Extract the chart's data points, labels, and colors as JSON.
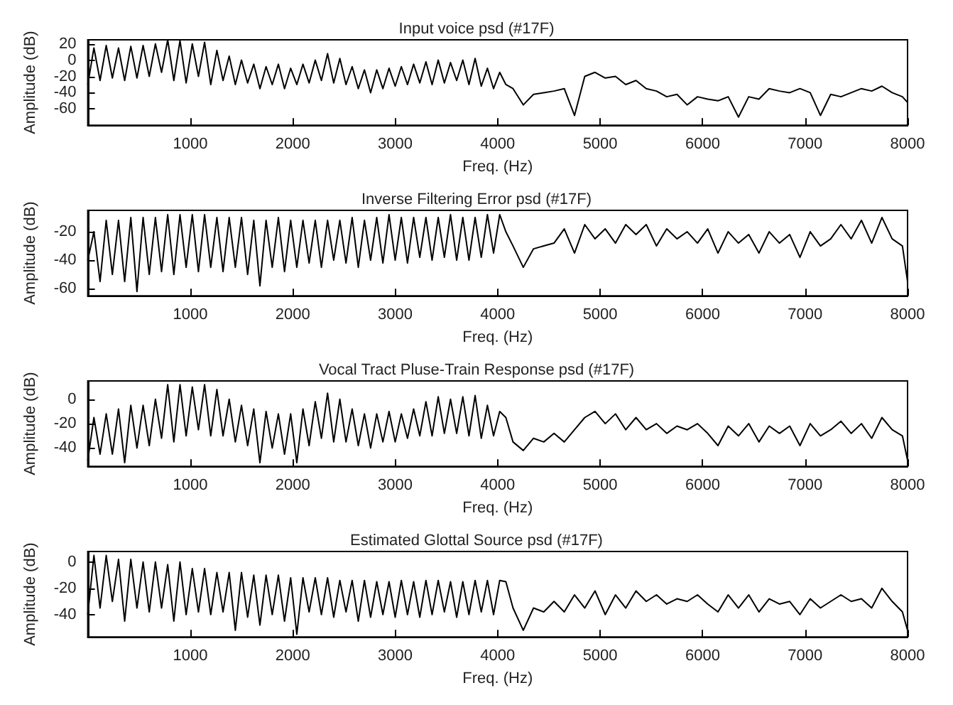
{
  "chart_data": [
    {
      "type": "line",
      "title": "Input voice psd (#17F)",
      "xlabel": "Freq. (Hz)",
      "ylabel": "Amplitude (dB)",
      "xlim": [
        0,
        8000
      ],
      "xticks": [
        1000,
        2000,
        3000,
        4000,
        5000,
        6000,
        7000,
        8000
      ],
      "ylim": [
        -80,
        25
      ],
      "yticks": [
        -60,
        -40,
        -20,
        0,
        20
      ],
      "grid": false,
      "marker": "none",
      "line_style": "solid",
      "x": [
        0,
        60,
        120,
        180,
        240,
        300,
        360,
        420,
        480,
        540,
        600,
        660,
        720,
        780,
        840,
        900,
        960,
        1020,
        1080,
        1140,
        1200,
        1260,
        1320,
        1380,
        1440,
        1500,
        1560,
        1620,
        1680,
        1740,
        1800,
        1860,
        1920,
        1980,
        2040,
        2100,
        2160,
        2220,
        2280,
        2340,
        2400,
        2460,
        2520,
        2580,
        2640,
        2700,
        2760,
        2820,
        2880,
        2940,
        3000,
        3060,
        3120,
        3180,
        3240,
        3300,
        3360,
        3420,
        3480,
        3540,
        3600,
        3660,
        3720,
        3780,
        3840,
        3900,
        3960,
        4020,
        4080,
        4150,
        4250,
        4350,
        4450,
        4550,
        4650,
        4750,
        4850,
        4950,
        5050,
        5150,
        5250,
        5350,
        5450,
        5550,
        5650,
        5750,
        5850,
        5950,
        6050,
        6150,
        6250,
        6350,
        6450,
        6550,
        6650,
        6750,
        6850,
        6950,
        7050,
        7150,
        7250,
        7350,
        7450,
        7550,
        7650,
        7750,
        7850,
        7950,
        8000
      ],
      "series": [
        {
          "color": "#000000",
          "values": [
            -30,
            15,
            -25,
            18,
            -22,
            15,
            -25,
            17,
            -22,
            18,
            -20,
            20,
            -15,
            25,
            -25,
            24,
            -28,
            20,
            -20,
            22,
            -30,
            12,
            -25,
            5,
            -30,
            0,
            -28,
            -5,
            -35,
            -8,
            -30,
            -5,
            -35,
            -10,
            -30,
            -5,
            -28,
            0,
            -25,
            8,
            -28,
            2,
            -30,
            -8,
            -35,
            -12,
            -40,
            -12,
            -35,
            -10,
            -32,
            -8,
            -30,
            -5,
            -28,
            -2,
            -30,
            0,
            -28,
            -3,
            -25,
            0,
            -30,
            2,
            -32,
            -10,
            -35,
            -15,
            -30,
            -35,
            -55,
            -42,
            -40,
            -38,
            -35,
            -68,
            -20,
            -15,
            -22,
            -20,
            -30,
            -25,
            -35,
            -38,
            -45,
            -42,
            -55,
            -45,
            -48,
            -50,
            -45,
            -70,
            -45,
            -48,
            -35,
            -38,
            -40,
            -35,
            -40,
            -68,
            -42,
            -45,
            -40,
            -35,
            -38,
            -32,
            -40,
            -45,
            -52
          ]
        }
      ]
    },
    {
      "type": "line",
      "title": "Inverse Filtering Error psd (#17F)",
      "xlabel": "Freq. (Hz)",
      "ylabel": "Amplitude (dB)",
      "xlim": [
        0,
        8000
      ],
      "xticks": [
        1000,
        2000,
        3000,
        4000,
        5000,
        6000,
        7000,
        8000
      ],
      "ylim": [
        -65,
        -5
      ],
      "yticks": [
        -60,
        -40,
        -20
      ],
      "grid": false,
      "marker": "none",
      "line_style": "solid",
      "x": [
        0,
        60,
        120,
        180,
        240,
        300,
        360,
        420,
        480,
        540,
        600,
        660,
        720,
        780,
        840,
        900,
        960,
        1020,
        1080,
        1140,
        1200,
        1260,
        1320,
        1380,
        1440,
        1500,
        1560,
        1620,
        1680,
        1740,
        1800,
        1860,
        1920,
        1980,
        2040,
        2100,
        2160,
        2220,
        2280,
        2340,
        2400,
        2460,
        2520,
        2580,
        2640,
        2700,
        2760,
        2820,
        2880,
        2940,
        3000,
        3060,
        3120,
        3180,
        3240,
        3300,
        3360,
        3420,
        3480,
        3540,
        3600,
        3660,
        3720,
        3780,
        3840,
        3900,
        3960,
        4020,
        4080,
        4150,
        4250,
        4350,
        4450,
        4550,
        4650,
        4750,
        4850,
        4950,
        5050,
        5150,
        5250,
        5350,
        5450,
        5550,
        5650,
        5750,
        5850,
        5950,
        6050,
        6150,
        6250,
        6350,
        6450,
        6550,
        6650,
        6750,
        6850,
        6950,
        7050,
        7150,
        7250,
        7350,
        7450,
        7550,
        7650,
        7750,
        7850,
        7950,
        8000
      ],
      "series": [
        {
          "color": "#000000",
          "values": [
            -40,
            -20,
            -55,
            -12,
            -50,
            -12,
            -55,
            -10,
            -62,
            -10,
            -50,
            -10,
            -48,
            -8,
            -50,
            -8,
            -45,
            -8,
            -48,
            -8,
            -45,
            -10,
            -48,
            -10,
            -45,
            -10,
            -50,
            -12,
            -58,
            -12,
            -45,
            -10,
            -48,
            -12,
            -45,
            -12,
            -42,
            -12,
            -45,
            -12,
            -40,
            -12,
            -42,
            -10,
            -45,
            -12,
            -40,
            -10,
            -42,
            -8,
            -40,
            -10,
            -42,
            -10,
            -38,
            -10,
            -40,
            -10,
            -38,
            -8,
            -40,
            -10,
            -40,
            -10,
            -38,
            -8,
            -35,
            -8,
            -20,
            -30,
            -45,
            -32,
            -30,
            -28,
            -18,
            -35,
            -15,
            -25,
            -18,
            -28,
            -15,
            -22,
            -15,
            -30,
            -18,
            -25,
            -20,
            -28,
            -18,
            -35,
            -20,
            -28,
            -22,
            -35,
            -20,
            -28,
            -22,
            -38,
            -20,
            -30,
            -25,
            -15,
            -25,
            -12,
            -28,
            -10,
            -25,
            -30,
            -55
          ]
        }
      ]
    },
    {
      "type": "line",
      "title": "Vocal Tract Pluse-Train Response psd (#17F)",
      "xlabel": "Freq. (Hz)",
      "ylabel": "Amplitude (dB)",
      "xlim": [
        0,
        8000
      ],
      "xticks": [
        1000,
        2000,
        3000,
        4000,
        5000,
        6000,
        7000,
        8000
      ],
      "ylim": [
        -55,
        15
      ],
      "yticks": [
        -40,
        -20,
        0
      ],
      "grid": false,
      "marker": "none",
      "line_style": "solid",
      "x": [
        0,
        60,
        120,
        180,
        240,
        300,
        360,
        420,
        480,
        540,
        600,
        660,
        720,
        780,
        840,
        900,
        960,
        1020,
        1080,
        1140,
        1200,
        1260,
        1320,
        1380,
        1440,
        1500,
        1560,
        1620,
        1680,
        1740,
        1800,
        1860,
        1920,
        1980,
        2040,
        2100,
        2160,
        2220,
        2280,
        2340,
        2400,
        2460,
        2520,
        2580,
        2640,
        2700,
        2760,
        2820,
        2880,
        2940,
        3000,
        3060,
        3120,
        3180,
        3240,
        3300,
        3360,
        3420,
        3480,
        3540,
        3600,
        3660,
        3720,
        3780,
        3840,
        3900,
        3960,
        4020,
        4080,
        4150,
        4250,
        4350,
        4450,
        4550,
        4650,
        4750,
        4850,
        4950,
        5050,
        5150,
        5250,
        5350,
        5450,
        5550,
        5650,
        5750,
        5850,
        5950,
        6050,
        6150,
        6250,
        6350,
        6450,
        6550,
        6650,
        6750,
        6850,
        6950,
        7050,
        7150,
        7250,
        7350,
        7450,
        7550,
        7650,
        7750,
        7850,
        7950,
        8000
      ],
      "series": [
        {
          "color": "#000000",
          "values": [
            -50,
            -15,
            -45,
            -12,
            -45,
            -8,
            -52,
            -5,
            -40,
            -5,
            -38,
            0,
            -32,
            12,
            -35,
            12,
            -30,
            10,
            -25,
            12,
            -30,
            8,
            -30,
            0,
            -35,
            -5,
            -38,
            -8,
            -52,
            -10,
            -40,
            -12,
            -45,
            -12,
            -52,
            -8,
            -38,
            -2,
            -32,
            5,
            -35,
            0,
            -35,
            -8,
            -38,
            -12,
            -40,
            -12,
            -35,
            -10,
            -35,
            -12,
            -32,
            -8,
            -30,
            -2,
            -30,
            2,
            -28,
            0,
            -28,
            2,
            -30,
            3,
            -32,
            -5,
            -30,
            -10,
            -15,
            -35,
            -42,
            -32,
            -35,
            -28,
            -35,
            -25,
            -15,
            -10,
            -20,
            -12,
            -25,
            -15,
            -25,
            -20,
            -28,
            -22,
            -25,
            -20,
            -28,
            -38,
            -22,
            -30,
            -20,
            -35,
            -22,
            -28,
            -22,
            -38,
            -20,
            -30,
            -25,
            -18,
            -28,
            -20,
            -32,
            -15,
            -25,
            -30,
            -50
          ]
        }
      ]
    },
    {
      "type": "line",
      "title": "Estimated Glottal Source psd (#17F)",
      "xlabel": "Freq. (Hz)",
      "ylabel": "Amplitude (dB)",
      "xlim": [
        0,
        8000
      ],
      "xticks": [
        1000,
        2000,
        3000,
        4000,
        5000,
        6000,
        7000,
        8000
      ],
      "ylim": [
        -57,
        8
      ],
      "yticks": [
        -40,
        -20,
        0
      ],
      "grid": false,
      "marker": "none",
      "line_style": "solid",
      "x": [
        0,
        60,
        120,
        180,
        240,
        300,
        360,
        420,
        480,
        540,
        600,
        660,
        720,
        780,
        840,
        900,
        960,
        1020,
        1080,
        1140,
        1200,
        1260,
        1320,
        1380,
        1440,
        1500,
        1560,
        1620,
        1680,
        1740,
        1800,
        1860,
        1920,
        1980,
        2040,
        2100,
        2160,
        2220,
        2280,
        2340,
        2400,
        2460,
        2520,
        2580,
        2640,
        2700,
        2760,
        2820,
        2880,
        2940,
        3000,
        3060,
        3120,
        3180,
        3240,
        3300,
        3360,
        3420,
        3480,
        3540,
        3600,
        3660,
        3720,
        3780,
        3840,
        3900,
        3960,
        4020,
        4080,
        4150,
        4250,
        4350,
        4450,
        4550,
        4650,
        4750,
        4850,
        4950,
        5050,
        5150,
        5250,
        5350,
        5450,
        5550,
        5650,
        5750,
        5850,
        5950,
        6050,
        6150,
        6250,
        6350,
        6450,
        6550,
        6650,
        6750,
        6850,
        6950,
        7050,
        7150,
        7250,
        7350,
        7450,
        7550,
        7650,
        7750,
        7850,
        7950,
        8000
      ],
      "series": [
        {
          "color": "#000000",
          "values": [
            -40,
            5,
            -35,
            5,
            -30,
            2,
            -45,
            2,
            -35,
            0,
            -38,
            0,
            -35,
            -2,
            -45,
            0,
            -40,
            -5,
            -38,
            -5,
            -40,
            -8,
            -38,
            -8,
            -52,
            -8,
            -42,
            -10,
            -48,
            -10,
            -40,
            -10,
            -45,
            -12,
            -55,
            -12,
            -38,
            -12,
            -40,
            -12,
            -42,
            -14,
            -38,
            -14,
            -45,
            -14,
            -42,
            -15,
            -40,
            -15,
            -42,
            -14,
            -40,
            -15,
            -42,
            -14,
            -40,
            -14,
            -38,
            -15,
            -42,
            -15,
            -40,
            -14,
            -38,
            -14,
            -40,
            -14,
            -15,
            -35,
            -52,
            -35,
            -38,
            -30,
            -38,
            -25,
            -35,
            -22,
            -40,
            -25,
            -35,
            -22,
            -30,
            -25,
            -32,
            -28,
            -30,
            -25,
            -32,
            -38,
            -25,
            -35,
            -25,
            -38,
            -28,
            -32,
            -30,
            -40,
            -28,
            -35,
            -30,
            -25,
            -30,
            -28,
            -35,
            -20,
            -30,
            -38,
            -52
          ]
        }
      ]
    }
  ]
}
